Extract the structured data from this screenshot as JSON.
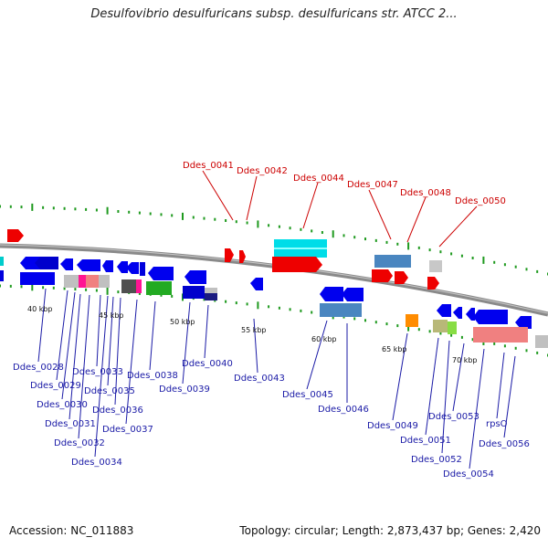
{
  "title": "Desulfovibrio desulfuricans subsp. desulfuricans str. ATCC 2...",
  "footer": {
    "accession": "Accession: NC_011883",
    "topology": "Topology: circular; Length: 2,873,437 bp; Genes: 2,420"
  },
  "colors": {
    "backbone": "#808080",
    "forward_label": "#cc0000",
    "reverse_label": "#1a1aa6"
  },
  "scale_labels": [
    "40 kbp",
    "45 kbp",
    "50 kbp",
    "55 kbp",
    "60 kbp",
    "65 kbp",
    "70 kbp"
  ],
  "top_gene_labels": [
    "Ddes_0041",
    "Ddes_0042",
    "Ddes_0044",
    "Ddes_0047",
    "Ddes_0048",
    "Ddes_0050"
  ],
  "bottom_gene_labels": [
    "Ddes_0028",
    "Ddes_0029",
    "Ddes_0030",
    "Ddes_0031",
    "Ddes_0032",
    "Ddes_0033",
    "Ddes_0034",
    "Ddes_0035",
    "Ddes_0036",
    "Ddes_0037",
    "Ddes_0038",
    "Ddes_0039",
    "Ddes_0040",
    "Ddes_0043",
    "Ddes_0045",
    "Ddes_0046",
    "Ddes_0049",
    "Ddes_0051",
    "Ddes_0052",
    "Ddes_0053",
    "Ddes_0054",
    "rpsO",
    "Ddes_0056"
  ]
}
